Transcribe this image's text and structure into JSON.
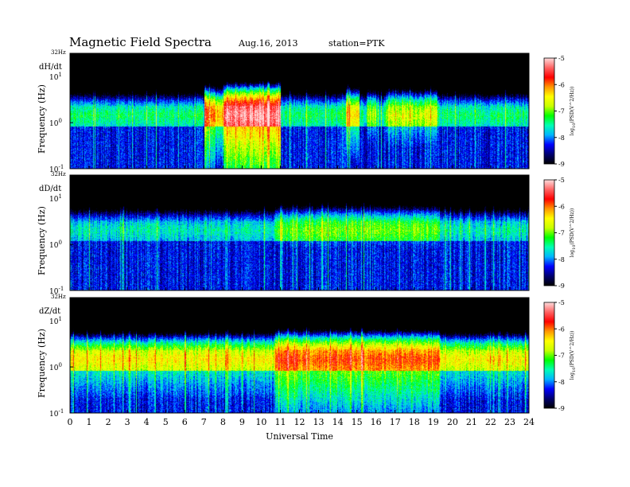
{
  "header": {
    "title": "Magnetic Field Spectra",
    "date": "Aug.16, 2013",
    "station": "station=PTK"
  },
  "chart_data": {
    "type": "heatmap",
    "xlabel": "Universal Time",
    "xlim": [
      0,
      24
    ],
    "x_ticks": [
      "0",
      "1",
      "2",
      "3",
      "4",
      "5",
      "6",
      "7",
      "8",
      "9",
      "10",
      "11",
      "12",
      "13",
      "14",
      "15",
      "16",
      "17",
      "18",
      "19",
      "20",
      "21",
      "22",
      "23",
      "24"
    ],
    "yscale": "log",
    "ylim": [
      0.1,
      32
    ],
    "y_top_label": "32Hz",
    "y_tick_labels": [
      {
        "base": "10",
        "exp": "1",
        "value": 10
      },
      {
        "base": "10",
        "exp": "0",
        "value": 1
      },
      {
        "base": "10",
        "exp": "-1",
        "value": 0.1
      }
    ],
    "colorbar": {
      "label": "log(PSD(V^2/Hz))",
      "label_main": "log",
      "label_sub": "10",
      "label_rest": "(PSD(V^2/Hz))",
      "range": [
        -9,
        -5
      ],
      "ticks": [
        "-5",
        "-6",
        "-7",
        "-8",
        "-9"
      ],
      "colors": [
        "#000000",
        "#000070",
        "#0000ff",
        "#00b4ff",
        "#00ffb4",
        "#00ff00",
        "#c8ff00",
        "#ffff00",
        "#ff9600",
        "#ff0000",
        "#ff6464",
        "#ffdcdc"
      ]
    },
    "panels": [
      {
        "component": "dH/dt",
        "ylabel": "Frequency (Hz)",
        "band_log_freq": 0.15,
        "background_level": -7.4,
        "events": [
          {
            "t_start": 7.0,
            "t_end": 7.6,
            "level": -5.9
          },
          {
            "t_start": 7.6,
            "t_end": 8.0,
            "level": -6.2
          },
          {
            "t_start": 8.0,
            "t_end": 11.0,
            "level": -5.2
          },
          {
            "t_start": 14.4,
            "t_end": 15.1,
            "level": -6.3
          },
          {
            "t_start": 15.5,
            "t_end": 16.0,
            "level": -6.8
          },
          {
            "t_start": 16.5,
            "t_end": 19.2,
            "level": -6.7
          }
        ]
      },
      {
        "component": "dD/dt",
        "ylabel": "Frequency (Hz)",
        "band_log_freq": 0.3,
        "background_level": -7.6,
        "events": [
          {
            "t_start": 10.7,
            "t_end": 19.3,
            "level": -7.0
          }
        ]
      },
      {
        "component": "dZ/dt",
        "ylabel": "Frequency (Hz)",
        "band_log_freq": 0.15,
        "background_level": -6.5,
        "events": [
          {
            "t_start": 10.7,
            "t_end": 19.3,
            "level": -5.9
          }
        ]
      }
    ]
  }
}
